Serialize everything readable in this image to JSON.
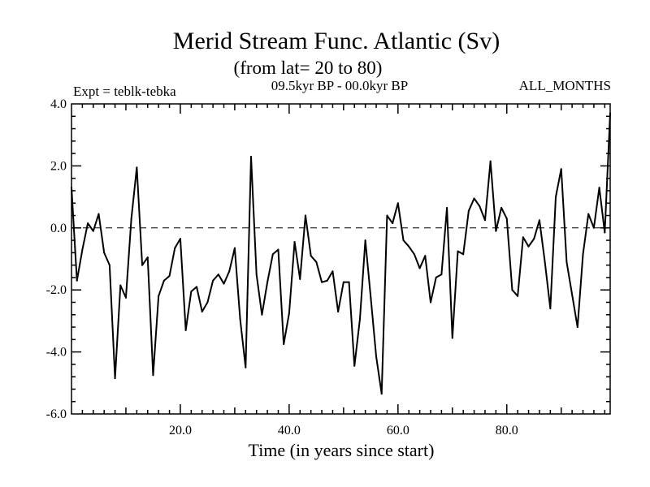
{
  "chart_data": {
    "type": "line",
    "title": "Merid Stream Func. Atlantic (Sv)",
    "subtitle": "(from lat= 20 to 80)",
    "experiment_label": "Expt = teblk-tebka",
    "period_label": "09.5kyr BP - 00.0kyr BP",
    "months_label": "ALL_MONTHS",
    "xlabel": "Time (in years since start)",
    "ylabel": "",
    "xlim": [
      0,
      99
    ],
    "ylim": [
      -6.0,
      4.0
    ],
    "x_ticks": [
      20,
      40,
      60,
      80
    ],
    "x_tick_labels": [
      "20.0",
      "40.0",
      "60.0",
      "80.0"
    ],
    "y_ticks": [
      -6,
      -4,
      -2,
      0,
      2,
      4
    ],
    "y_tick_labels": [
      "-6.0",
      "-4.0",
      "-2.0",
      "0.0",
      "2.0",
      "4.0"
    ],
    "reference_line": {
      "y": 0.0,
      "style": "dashed"
    },
    "series": [
      {
        "name": "Merid Stream Func.",
        "x": [
          0,
          1,
          2,
          3,
          4,
          5,
          6,
          7,
          8,
          9,
          10,
          11,
          12,
          13,
          14,
          15,
          16,
          17,
          18,
          19,
          20,
          21,
          22,
          23,
          24,
          25,
          26,
          27,
          28,
          29,
          30,
          31,
          32,
          33,
          34,
          35,
          36,
          37,
          38,
          39,
          40,
          41,
          42,
          43,
          44,
          45,
          46,
          47,
          48,
          49,
          50,
          51,
          52,
          53,
          54,
          55,
          56,
          57,
          58,
          59,
          60,
          61,
          62,
          63,
          64,
          65,
          66,
          67,
          68,
          69,
          70,
          71,
          72,
          73,
          74,
          75,
          76,
          77,
          78,
          79,
          80,
          81,
          82,
          83,
          84,
          85,
          86,
          87,
          88,
          89,
          90,
          91,
          92,
          93,
          94,
          95,
          96,
          97,
          98,
          99
        ],
        "values": [
          1.3,
          -1.7,
          -0.7,
          0.15,
          -0.1,
          0.45,
          -0.8,
          -1.2,
          -4.85,
          -1.85,
          -2.25,
          0.3,
          1.95,
          -1.2,
          -0.95,
          -4.75,
          -2.2,
          -1.7,
          -1.55,
          -0.65,
          -0.35,
          -3.3,
          -2.05,
          -1.9,
          -2.7,
          -2.4,
          -1.7,
          -1.5,
          -1.8,
          -1.4,
          -0.65,
          -2.95,
          -4.5,
          2.3,
          -1.5,
          -2.8,
          -1.75,
          -0.85,
          -0.7,
          -3.75,
          -2.75,
          -0.45,
          -1.65,
          0.4,
          -0.9,
          -1.1,
          -1.75,
          -1.7,
          -1.4,
          -2.7,
          -1.75,
          -1.75,
          -4.45,
          -2.95,
          -0.4,
          -2.25,
          -4.15,
          -5.35,
          0.4,
          0.15,
          0.8,
          -0.4,
          -0.6,
          -0.85,
          -1.3,
          -0.9,
          -2.4,
          -1.6,
          -1.5,
          0.65,
          -3.55,
          -0.75,
          -0.85,
          0.55,
          0.95,
          0.7,
          0.25,
          2.15,
          -0.1,
          0.65,
          0.3,
          -2.0,
          -2.2,
          -0.3,
          -0.6,
          -0.35,
          0.25,
          -1.1,
          -2.6,
          1.0,
          1.9,
          -1.1,
          -2.15,
          -3.2,
          -0.85,
          0.45,
          0.0,
          1.3,
          -0.15,
          3.7
        ]
      }
    ]
  },
  "colors": {
    "line": "#000000",
    "axis": "#000000",
    "background": "#ffffff"
  }
}
